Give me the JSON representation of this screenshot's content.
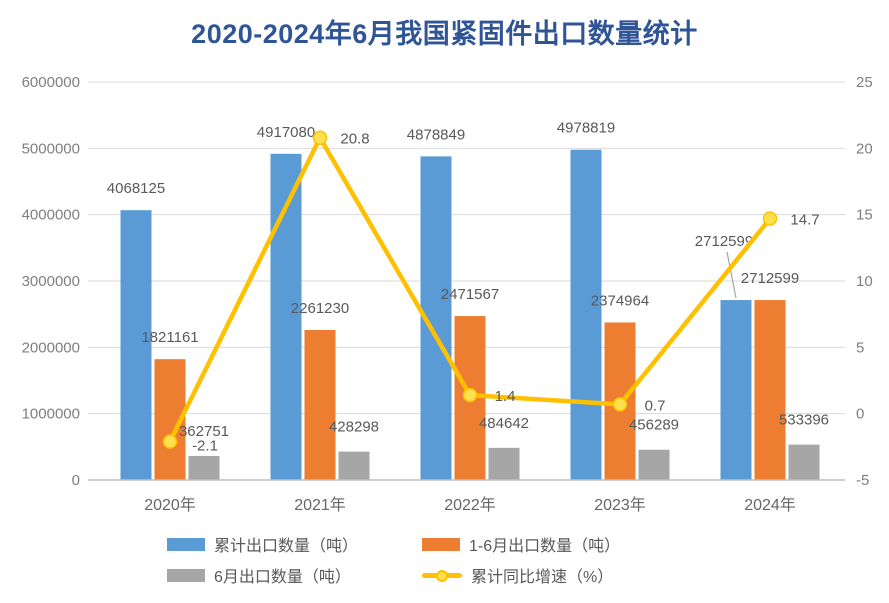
{
  "title": {
    "text": "2020-2024年6月我国紧固件出口数量统计",
    "color": "#2F5597"
  },
  "chart_data": {
    "type": "combo-bar-line",
    "categories": [
      "2020年",
      "2021年",
      "2022年",
      "2023年",
      "2024年"
    ],
    "series": [
      {
        "name": "累计出口数量（吨）",
        "type": "bar",
        "axis": "left",
        "color": "#5B9BD5",
        "values": [
          4068125,
          4917080,
          4878849,
          4978819,
          2712599
        ]
      },
      {
        "name": "1-6月出口数量（吨）",
        "type": "bar",
        "axis": "left",
        "color": "#ED7D31",
        "values": [
          1821161,
          2261230,
          2471567,
          2374964,
          2712599
        ]
      },
      {
        "name": "6月出口数量（吨）",
        "type": "bar",
        "axis": "left",
        "color": "#A6A6A6",
        "values": [
          362751,
          428298,
          484642,
          456289,
          533396
        ]
      },
      {
        "name": "累计同比增速（%）",
        "type": "line",
        "axis": "right",
        "color": "#FFC000",
        "values": [
          -2.1,
          20.8,
          1.4,
          0.7,
          14.7
        ]
      }
    ],
    "left_axis": {
      "min": 0,
      "max": 6000000,
      "step": 1000000,
      "tick_labels": [
        "6000000",
        "5000000",
        "4000000",
        "3000000",
        "2000000",
        "1000000",
        "0"
      ]
    },
    "right_axis": {
      "min": -5,
      "max": 25,
      "step": 5,
      "tick_labels": [
        "25",
        "20",
        "15",
        "10",
        "5",
        "0",
        "-5"
      ]
    },
    "grid": true,
    "legend_position": "bottom",
    "callout": {
      "series_index": 0,
      "category_index": 4,
      "label": "2712599"
    }
  },
  "style": {
    "background": "#FFFFFF",
    "gridline_color": "#D9D9D9",
    "axis_line_color": "#BFBFBF",
    "tick_label_color": "#7F7F7F",
    "x_label_color": "#666666",
    "data_label_color": "#595959",
    "marker_fill": "#FFE14D",
    "marker_stroke": "#FFC000",
    "leader_line_color": "#A6A6A6"
  }
}
